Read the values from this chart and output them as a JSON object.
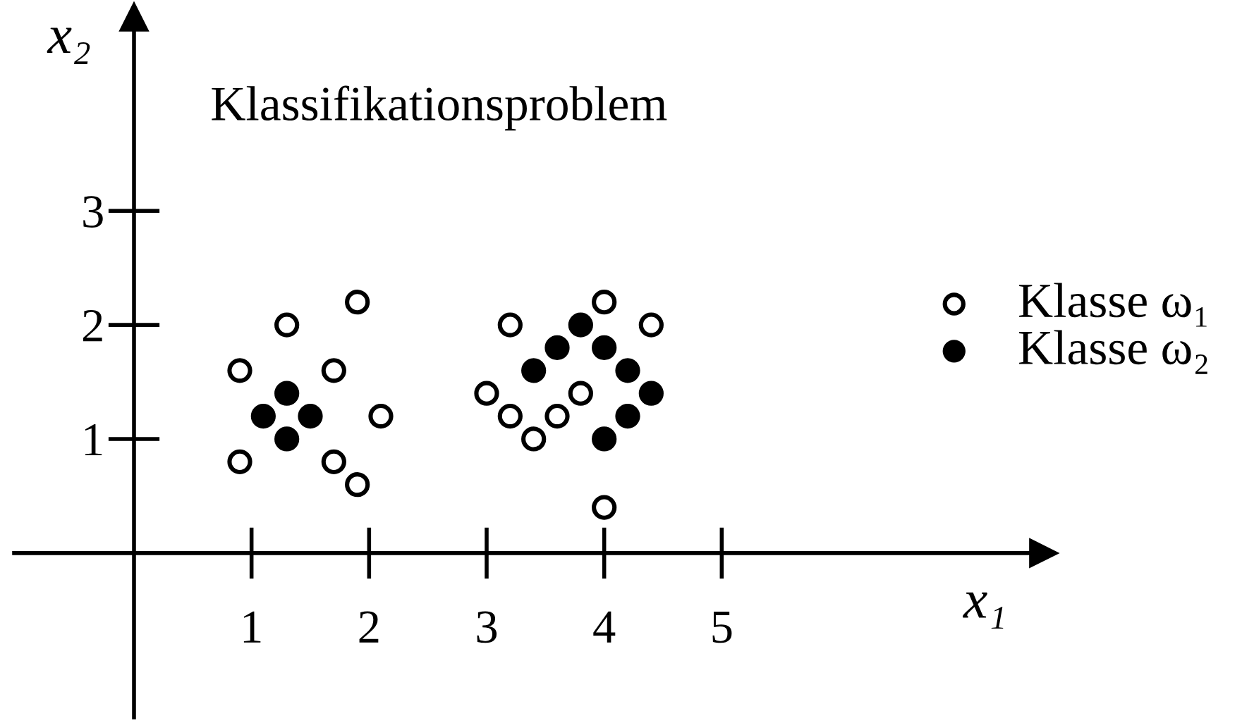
{
  "chart_data": {
    "type": "scatter",
    "title": "Klassifikationsproblem",
    "xlabel": "x₁",
    "ylabel": "x₂",
    "xlim": [
      -1.02,
      7.74
    ],
    "ylim": [
      -1.44,
      4.7
    ],
    "xticks": [
      1,
      2,
      3,
      4,
      5
    ],
    "yticks": [
      1,
      2,
      3
    ],
    "grid": false,
    "legend": "top right",
    "marker": "circle",
    "series": [
      {
        "name": "Klasse ω₁",
        "color": "#ffffff",
        "x": [
          0.9,
          1.3,
          1.9,
          1.7,
          2.1,
          0.9,
          1.7,
          1.9,
          4.0,
          3.2,
          4.4,
          3.0,
          3.2,
          3.6,
          3.4,
          3.8,
          4.0
        ],
        "values": [
          1.6,
          2.0,
          2.2,
          1.6,
          1.2,
          0.8,
          0.8,
          0.6,
          2.2,
          2.0,
          2.0,
          1.4,
          1.2,
          1.2,
          1.0,
          1.4,
          0.4
        ]
      },
      {
        "name": "Klasse ω₂",
        "color": "#000000",
        "x": [
          1.3,
          1.1,
          1.5,
          1.3,
          3.8,
          3.6,
          3.4,
          4.0,
          4.2,
          4.4,
          4.2,
          4.0
        ],
        "values": [
          1.4,
          1.2,
          1.2,
          1.0,
          2.0,
          1.8,
          1.6,
          1.8,
          1.6,
          1.4,
          1.2,
          1.0
        ]
      }
    ]
  }
}
